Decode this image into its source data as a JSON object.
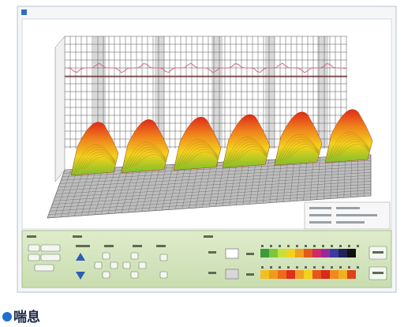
{
  "caption": "喘息"
}
